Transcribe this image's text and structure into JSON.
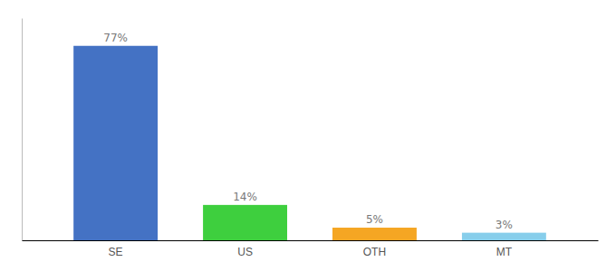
{
  "chart_data": {
    "type": "bar",
    "categories": [
      "SE",
      "US",
      "OTH",
      "MT"
    ],
    "values": [
      77,
      14,
      5,
      3
    ],
    "value_labels": [
      "77%",
      "14%",
      "5%",
      "3%"
    ],
    "colors": [
      "#4472c4",
      "#3ecf3e",
      "#f5a623",
      "#87ceeb"
    ],
    "ylim": [
      0,
      88
    ],
    "data_labels": true,
    "tick_labels": "x"
  }
}
